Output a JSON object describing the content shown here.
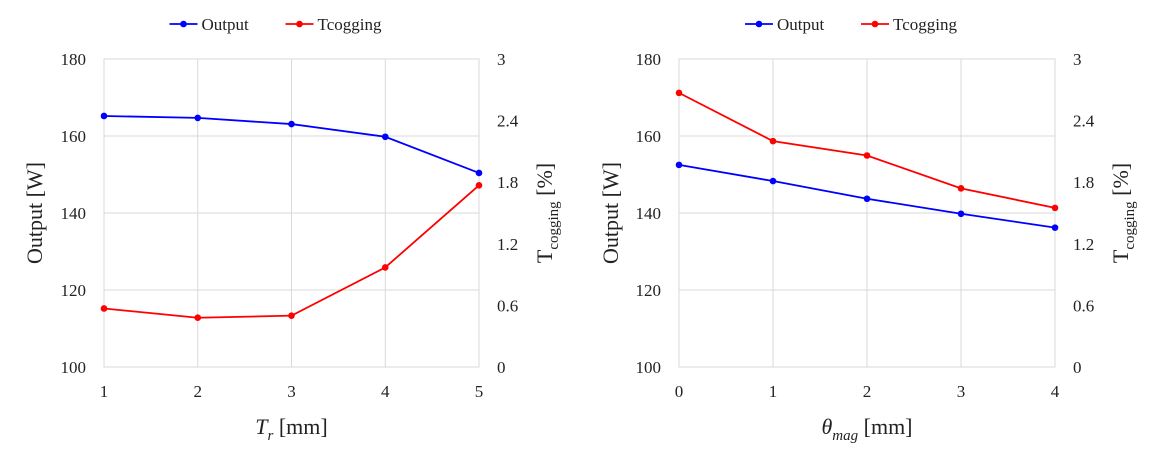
{
  "chart_data": [
    {
      "type": "line",
      "x": [
        1,
        2,
        3,
        4,
        5
      ],
      "xlabel": {
        "main": "T",
        "sub": "r",
        "unit": " [mm]"
      },
      "ylabel": "Output [W]",
      "y2label": {
        "main": "T",
        "sub": "cogging",
        "unit": " [%]"
      },
      "ylim": [
        100,
        180
      ],
      "y2lim": [
        0,
        3
      ],
      "yticks": [
        "100",
        "120",
        "140",
        "160",
        "180"
      ],
      "y2ticks": [
        "0",
        "0.6",
        "1.2",
        "1.8",
        "2.4",
        "3"
      ],
      "xticks": [
        "1",
        "2",
        "3",
        "4",
        "5"
      ],
      "grid": true,
      "legend_position": "top",
      "series": [
        {
          "name": "Output",
          "axis": "left",
          "color": "#0000ff",
          "values": [
            165.2,
            164.7,
            163.1,
            159.8,
            150.4
          ]
        },
        {
          "name": "Tcogging",
          "axis": "right",
          "color": "#ff0000",
          "values": [
            0.57,
            0.48,
            0.5,
            0.97,
            1.77
          ]
        }
      ]
    },
    {
      "type": "line",
      "x": [
        0,
        1,
        2,
        3,
        4
      ],
      "xlabel": {
        "main": "θ",
        "sub": "mag",
        "unit": " [mm]"
      },
      "ylabel": "Output [W]",
      "y2label": {
        "main": "T",
        "sub": "cogging",
        "unit": " [%]"
      },
      "ylim": [
        100,
        180
      ],
      "y2lim": [
        0,
        3
      ],
      "yticks": [
        "100",
        "120",
        "140",
        "160",
        "180"
      ],
      "y2ticks": [
        "0",
        "0.6",
        "1.2",
        "1.8",
        "2.4",
        "3"
      ],
      "xticks": [
        "0",
        "1",
        "2",
        "3",
        "4"
      ],
      "grid": true,
      "legend_position": "top",
      "series": [
        {
          "name": "Output",
          "axis": "left",
          "color": "#0000ff",
          "values": [
            152.5,
            148.3,
            143.7,
            139.8,
            136.2
          ]
        },
        {
          "name": "Tcogging",
          "axis": "right",
          "color": "#ff0000",
          "values": [
            2.67,
            2.2,
            2.06,
            1.74,
            1.55
          ]
        }
      ]
    }
  ]
}
